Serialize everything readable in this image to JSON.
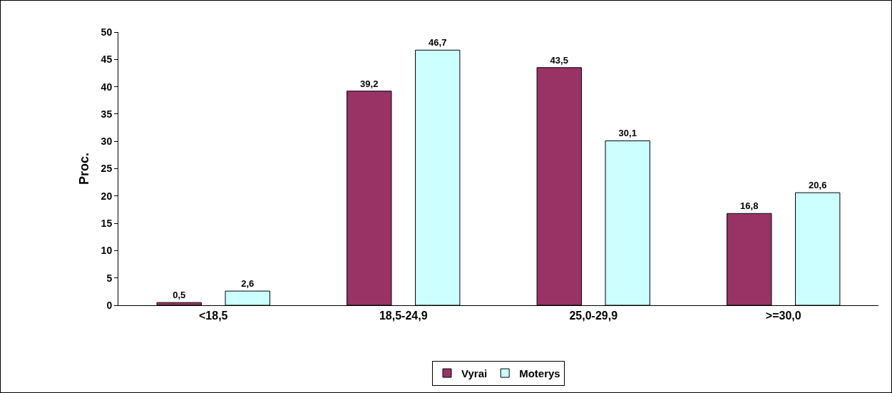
{
  "chart_data": {
    "type": "bar",
    "ylabel": "Proc.",
    "categories": [
      "<18,5",
      "18,5-24,9",
      "25,0-29,9",
      ">=30,0"
    ],
    "series": [
      {
        "name": "Vyrai",
        "color": "#993366",
        "values": [
          0.5,
          39.2,
          43.5,
          16.8
        ],
        "value_labels": [
          "0,5",
          "39,2",
          "43,5",
          "16,8"
        ]
      },
      {
        "name": "Moterys",
        "color": "#ccffff",
        "values": [
          2.6,
          46.7,
          30.1,
          20.6
        ],
        "value_labels": [
          "2,6",
          "46,7",
          "30,1",
          "20,6"
        ]
      }
    ],
    "ylim": [
      0,
      50
    ],
    "yticks": [
      0,
      5,
      10,
      15,
      20,
      25,
      30,
      35,
      40,
      45,
      50
    ],
    "grid": false,
    "legend": "bottom"
  }
}
